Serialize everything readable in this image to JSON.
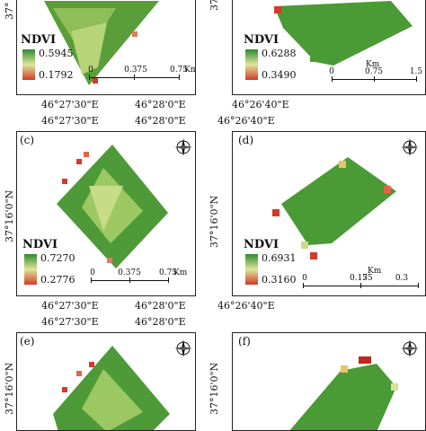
{
  "colors": {
    "high": "#2e8b2e",
    "mid": "#dfe69a",
    "low": "#d23a2a"
  },
  "legend_title": "NDVI",
  "panels": {
    "a": {
      "label": "",
      "max": "0.5945",
      "min": "0.1792",
      "scale": {
        "ticks": [
          "0",
          "0.375",
          "0.75"
        ],
        "unit": "Km"
      }
    },
    "b": {
      "label": "",
      "max": "0.6288",
      "min": "0.3490",
      "scale": {
        "ticks": [
          "0",
          "0.75",
          "1.5"
        ],
        "unit": "Km"
      }
    },
    "c": {
      "label": "(c)",
      "max": "0.7270",
      "min": "0.2776",
      "scale": {
        "ticks": [
          "0",
          "0.375",
          "0.75"
        ],
        "unit": "Km"
      }
    },
    "d": {
      "label": "(d)",
      "max": "0.6931",
      "min": "0.3160",
      "scale": {
        "ticks": [
          "0",
          "0.15",
          "0.3"
        ],
        "unit": "Km",
        "overlap": "75"
      }
    },
    "e": {
      "label": "(e)"
    },
    "f": {
      "label": "(f)"
    }
  },
  "coords": {
    "lon_left_1": "46°27'30\"E",
    "lon_left_2": "46°28'0\"E",
    "lon_right": "46°26'40\"E",
    "lat_top_left": "37°",
    "lat_top_right": "37°",
    "lat": "37°16'0\"N"
  },
  "compass": {
    "n": "N",
    "e": "E",
    "s": "S",
    "w": "W"
  }
}
